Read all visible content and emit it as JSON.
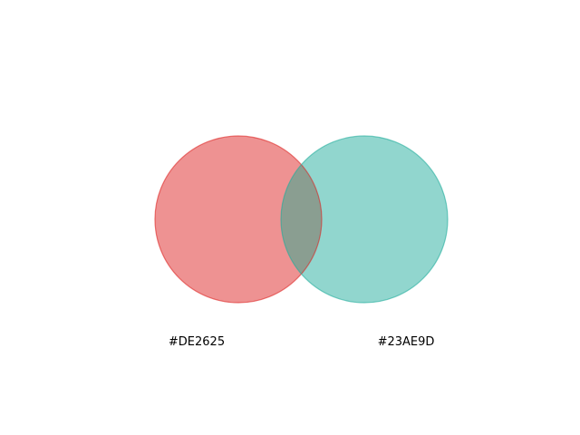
{
  "venn": {
    "sets": [
      {
        "label": "#DE2625",
        "color": "#DE2625"
      },
      {
        "label": "#23AE9D",
        "color": "#23AE9D"
      }
    ],
    "overlap_color": "#8A9E91"
  }
}
